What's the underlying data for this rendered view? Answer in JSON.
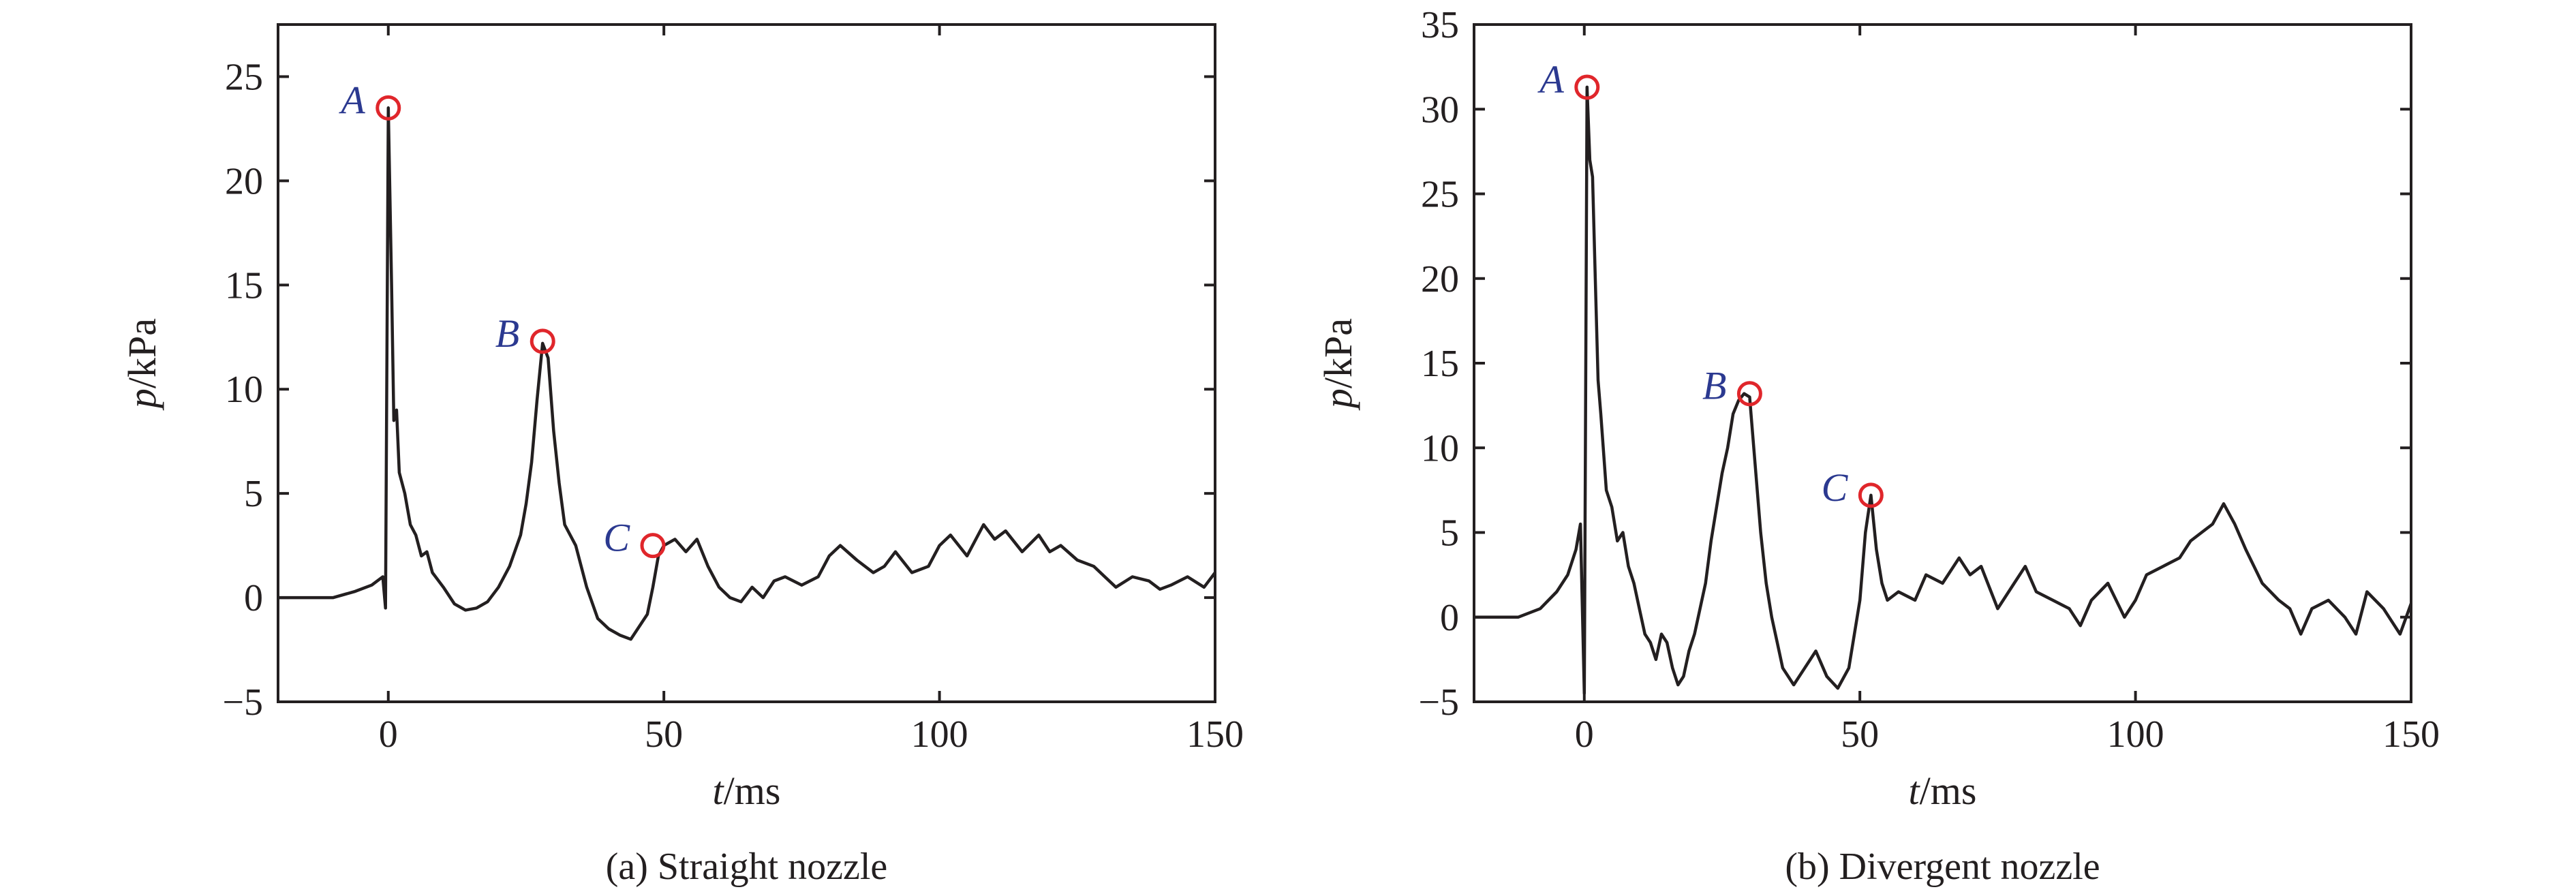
{
  "chart_data": [
    {
      "type": "line",
      "caption": "(a) Straight nozzle",
      "xlabel_var": "t",
      "xlabel_unit": "/ms",
      "ylabel_var": "p",
      "ylabel_unit": "/kPa",
      "xlim": [
        -20,
        150
      ],
      "ylim": [
        -5,
        27.5
      ],
      "xticks": [
        0,
        50,
        100,
        150
      ],
      "yticks": [
        -5,
        0,
        5,
        10,
        15,
        20,
        25
      ],
      "x": [
        -20,
        -10,
        -6,
        -3,
        -1,
        -0.5,
        0,
        0.6,
        1,
        1.5,
        2,
        3,
        4,
        5,
        6,
        7,
        8,
        10,
        12,
        14,
        16,
        18,
        20,
        22,
        24,
        25,
        26,
        27,
        28,
        29,
        30,
        31,
        32,
        34,
        36,
        38,
        40,
        42,
        44,
        46,
        47,
        48,
        49,
        50,
        52,
        54,
        56,
        58,
        60,
        62,
        64,
        66,
        68,
        70,
        72,
        75,
        78,
        80,
        82,
        85,
        88,
        90,
        92,
        95,
        98,
        100,
        102,
        105,
        108,
        110,
        112,
        115,
        118,
        120,
        122,
        125,
        128,
        130,
        132,
        135,
        138,
        140,
        142,
        145,
        148,
        150
      ],
      "y": [
        0,
        0,
        0.3,
        0.6,
        1.0,
        -0.5,
        23.5,
        15.0,
        8.5,
        9.0,
        6.0,
        5.0,
        3.5,
        3.0,
        2.0,
        2.2,
        1.2,
        0.5,
        -0.3,
        -0.6,
        -0.5,
        -0.2,
        0.5,
        1.5,
        3.0,
        4.5,
        6.5,
        9.5,
        12.2,
        11.5,
        8.0,
        5.5,
        3.5,
        2.5,
        0.5,
        -1.0,
        -1.5,
        -1.8,
        -2.0,
        -1.2,
        -0.8,
        0.5,
        2.0,
        2.5,
        2.8,
        2.2,
        2.8,
        1.5,
        0.5,
        0.0,
        -0.2,
        0.5,
        0.0,
        0.8,
        1.0,
        0.6,
        1.0,
        2.0,
        2.5,
        1.8,
        1.2,
        1.5,
        2.2,
        1.2,
        1.5,
        2.5,
        3.0,
        2.0,
        3.5,
        2.8,
        3.2,
        2.2,
        3.0,
        2.2,
        2.5,
        1.8,
        1.5,
        1.0,
        0.5,
        1.0,
        0.8,
        0.4,
        0.6,
        1.0,
        0.5,
        1.2
      ],
      "points": [
        {
          "label": "A",
          "x": 0,
          "y": 23.5
        },
        {
          "label": "B",
          "x": 28,
          "y": 12.3
        },
        {
          "label": "C",
          "x": 48,
          "y": 2.5
        }
      ]
    },
    {
      "type": "line",
      "caption": "(b) Divergent nozzle",
      "xlabel_var": "t",
      "xlabel_unit": "/ms",
      "ylabel_var": "p",
      "ylabel_unit": "/kPa",
      "xlim": [
        -20,
        150
      ],
      "ylim": [
        -5,
        35
      ],
      "xticks": [
        0,
        50,
        100,
        150
      ],
      "yticks": [
        -5,
        0,
        5,
        10,
        15,
        20,
        25,
        30,
        35
      ],
      "x": [
        -20,
        -12,
        -8,
        -5,
        -3,
        -1.5,
        -0.7,
        0,
        0.5,
        1,
        1.5,
        2,
        2.5,
        3,
        4,
        5,
        6,
        7,
        8,
        9,
        10,
        11,
        12,
        13,
        14,
        15,
        16,
        17,
        18,
        19,
        20,
        21,
        22,
        23,
        24,
        25,
        26,
        27,
        28,
        29,
        30,
        31,
        32,
        33,
        34,
        35,
        36,
        38,
        40,
        42,
        44,
        46,
        48,
        49,
        50,
        51,
        52,
        53,
        54,
        55,
        57,
        60,
        62,
        65,
        68,
        70,
        72,
        75,
        78,
        80,
        82,
        85,
        88,
        90,
        92,
        95,
        98,
        100,
        102,
        105,
        108,
        110,
        112,
        114,
        116,
        118,
        120,
        123,
        126,
        128,
        130,
        132,
        135,
        138,
        140,
        142,
        145,
        148,
        150
      ],
      "y": [
        0,
        0,
        0.5,
        1.5,
        2.5,
        4.0,
        5.5,
        -4.5,
        31.3,
        27.0,
        26.0,
        20.0,
        14.0,
        12.0,
        7.5,
        6.5,
        4.5,
        5.0,
        3.0,
        2.0,
        0.5,
        -1.0,
        -1.5,
        -2.5,
        -1.0,
        -1.5,
        -3.0,
        -4.0,
        -3.5,
        -2.0,
        -1.0,
        0.5,
        2.0,
        4.5,
        6.5,
        8.5,
        10.0,
        12.0,
        12.8,
        13.2,
        13.0,
        9.0,
        5.0,
        2.0,
        0.0,
        -1.5,
        -3.0,
        -4.0,
        -3.0,
        -2.0,
        -3.5,
        -4.2,
        -3.0,
        -1.0,
        1.0,
        5.0,
        7.2,
        4.0,
        2.0,
        1.0,
        1.5,
        1.0,
        2.5,
        2.0,
        3.5,
        2.5,
        3.0,
        0.5,
        2.0,
        3.0,
        1.5,
        1.0,
        0.5,
        -0.5,
        1.0,
        2.0,
        0.0,
        1.0,
        2.5,
        3.0,
        3.5,
        4.5,
        5.0,
        5.5,
        6.7,
        5.5,
        4.0,
        2.0,
        1.0,
        0.5,
        -1.0,
        0.5,
        1.0,
        0.0,
        -1.0,
        1.5,
        0.5,
        -1.0,
        0.8
      ],
      "points": [
        {
          "label": "A",
          "x": 0.5,
          "y": 31.3
        },
        {
          "label": "B",
          "x": 30,
          "y": 13.2
        },
        {
          "label": "C",
          "x": 52,
          "y": 7.2
        }
      ]
    }
  ]
}
